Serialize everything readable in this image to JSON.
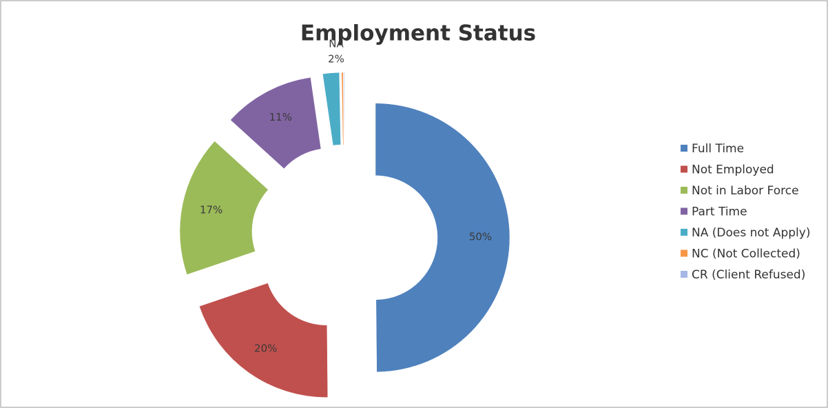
{
  "chart_data": {
    "type": "pie",
    "title": "Employment Status",
    "categories": [
      "Full Time",
      "Not Employed",
      "Not in Labor Force",
      "Part Time",
      "NA (Does not Apply)",
      "NC (Not Collected)",
      "CR (Client Refused)"
    ],
    "values": [
      50,
      20,
      17,
      11,
      2,
      0.2,
      0.1
    ],
    "value_labels": [
      "50%",
      "20%",
      "17%",
      "11%",
      "2%",
      null,
      null
    ],
    "colors": [
      "#4f81bd",
      "#c0504d",
      "#9bbb59",
      "#8064a2",
      "#4bacc6",
      "#f79646",
      "#a5b8e6"
    ],
    "annotations": [
      "NA"
    ],
    "donut": true,
    "legend": "right"
  }
}
